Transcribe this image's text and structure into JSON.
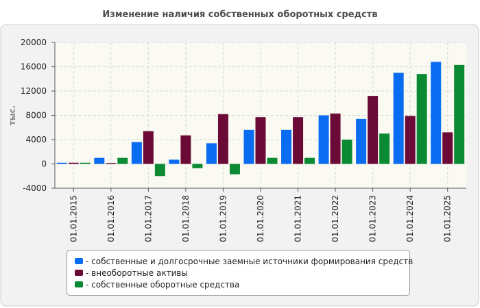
{
  "chart_data": {
    "type": "bar",
    "title": "Изменение наличия собственных оборотных средств",
    "ylabel": "тыс.",
    "xlabel": "",
    "ylim": [
      -4000,
      20000
    ],
    "yticks": [
      -4000,
      0,
      4000,
      8000,
      12000,
      16000,
      20000
    ],
    "grid": true,
    "legend_position": "bottom",
    "categories": [
      "01.01.2015",
      "01.01.2016",
      "01.01.2017",
      "01.01.2018",
      "01.01.2019",
      "01.01.2020",
      "01.01.2021",
      "01.01.2022",
      "01.01.2023",
      "01.01.2024",
      "01.01.2025"
    ],
    "series": [
      {
        "name": "- собственные и долгосрочные заемные источники формирования средств",
        "color": "#0a6cf0",
        "values": [
          200,
          1000,
          3600,
          700,
          3400,
          5600,
          5600,
          8000,
          7400,
          15000,
          16800
        ]
      },
      {
        "name": "- внеоборотные активы",
        "color": "#6b0a37",
        "values": [
          200,
          150,
          5400,
          4700,
          8200,
          7700,
          7700,
          8300,
          11200,
          7900,
          5200
        ]
      },
      {
        "name": "- собственные оборотные средства",
        "color": "#0a8a33",
        "values": [
          200,
          1000,
          -2000,
          -700,
          -1700,
          1000,
          1000,
          4000,
          5000,
          14800,
          16300
        ]
      }
    ]
  }
}
